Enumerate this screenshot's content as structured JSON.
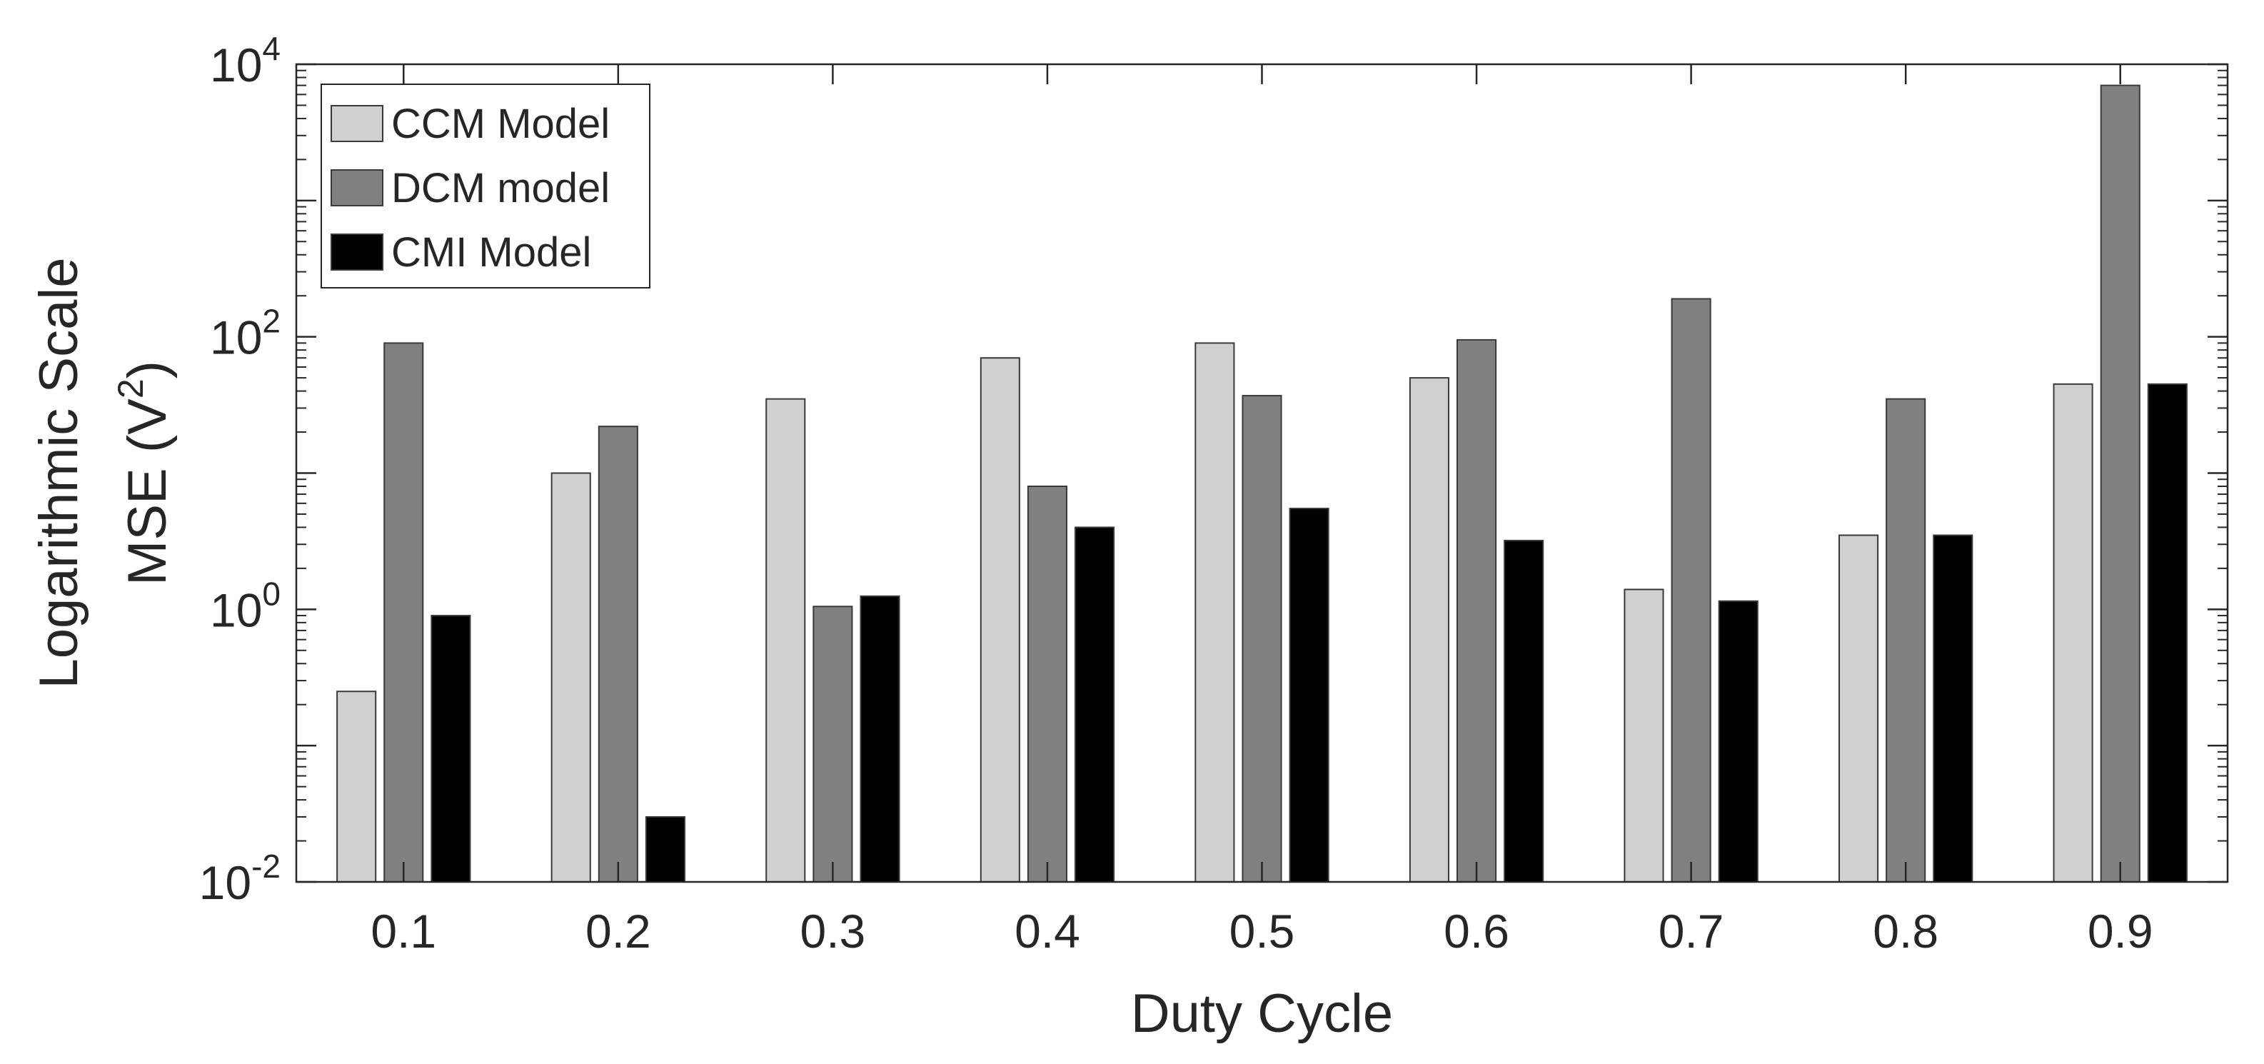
{
  "chart_data": {
    "type": "bar",
    "title": "",
    "xlabel": "Duty Cycle",
    "ylabel_line1": "Logarithmic Scale",
    "ylabel_line2_prefix": "MSE (V",
    "ylabel_line2_exponent": "2",
    "ylabel_line2_suffix": ")",
    "yscale": "log",
    "ylim": [
      0.01,
      10000
    ],
    "y_ticks": [
      {
        "base": "10",
        "exponent": "-2",
        "value": 0.01
      },
      {
        "base": "10",
        "exponent": "0",
        "value": 1
      },
      {
        "base": "10",
        "exponent": "2",
        "value": 100
      },
      {
        "base": "10",
        "exponent": "4",
        "value": 10000
      }
    ],
    "categories": [
      "0.1",
      "0.2",
      "0.3",
      "0.4",
      "0.5",
      "0.6",
      "0.7",
      "0.8",
      "0.9"
    ],
    "series": [
      {
        "name": "CCM Model",
        "color": "#d0d0d0",
        "values": [
          0.25,
          10,
          35,
          70,
          90,
          50,
          1.4,
          3.5,
          45
        ]
      },
      {
        "name": "DCM model",
        "color": "#808080",
        "values": [
          90,
          22,
          1.05,
          8,
          37,
          95,
          190,
          35,
          7000
        ]
      },
      {
        "name": "CMI Model",
        "color": "#000000",
        "values": [
          0.9,
          0.03,
          1.25,
          4,
          5.5,
          3.2,
          1.15,
          3.5,
          45
        ]
      }
    ],
    "legend_position": "top-left",
    "grid": false
  }
}
